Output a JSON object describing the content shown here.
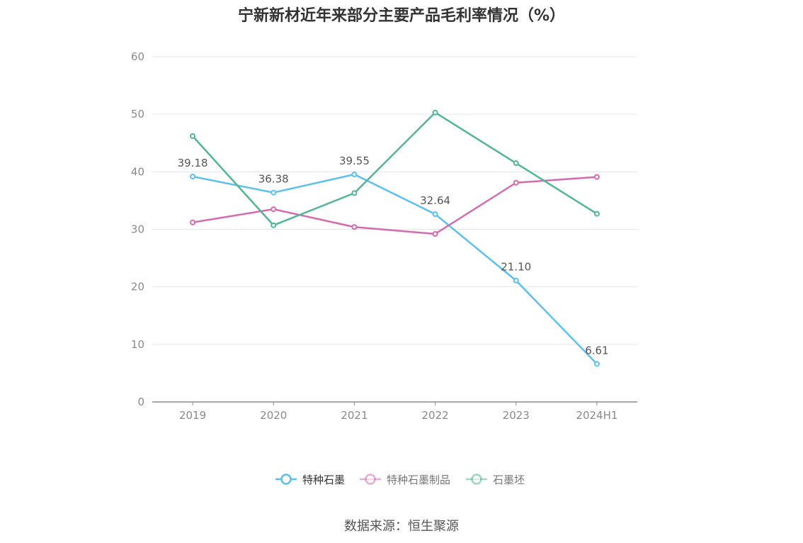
{
  "title": "宁新新材近年来部分主要产品毛利率情况（%）",
  "source": "数据来源：恒生聚源",
  "chart_data": {
    "type": "line",
    "categories": [
      "2019",
      "2020",
      "2021",
      "2022",
      "2023",
      "2024H1"
    ],
    "ylim": [
      0,
      60
    ],
    "yticks": [
      0,
      10,
      20,
      30,
      40,
      50,
      60
    ],
    "grid": true,
    "legend_position": "bottom",
    "series": [
      {
        "name": "特种石墨",
        "color": "#5bc0f0",
        "values": [
          39.18,
          36.38,
          39.55,
          32.64,
          21.1,
          6.61
        ],
        "labels": [
          "39.18",
          "36.38",
          "39.55",
          "32.64",
          "21.10",
          "6.61"
        ]
      },
      {
        "name": "特种石墨制品",
        "color": "#d46bae",
        "values": [
          31.2,
          33.5,
          30.4,
          29.2,
          38.1,
          39.1
        ]
      },
      {
        "name": "石墨坯",
        "color": "#52b598",
        "values": [
          46.2,
          30.7,
          36.3,
          50.3,
          41.5,
          32.7
        ]
      }
    ]
  }
}
